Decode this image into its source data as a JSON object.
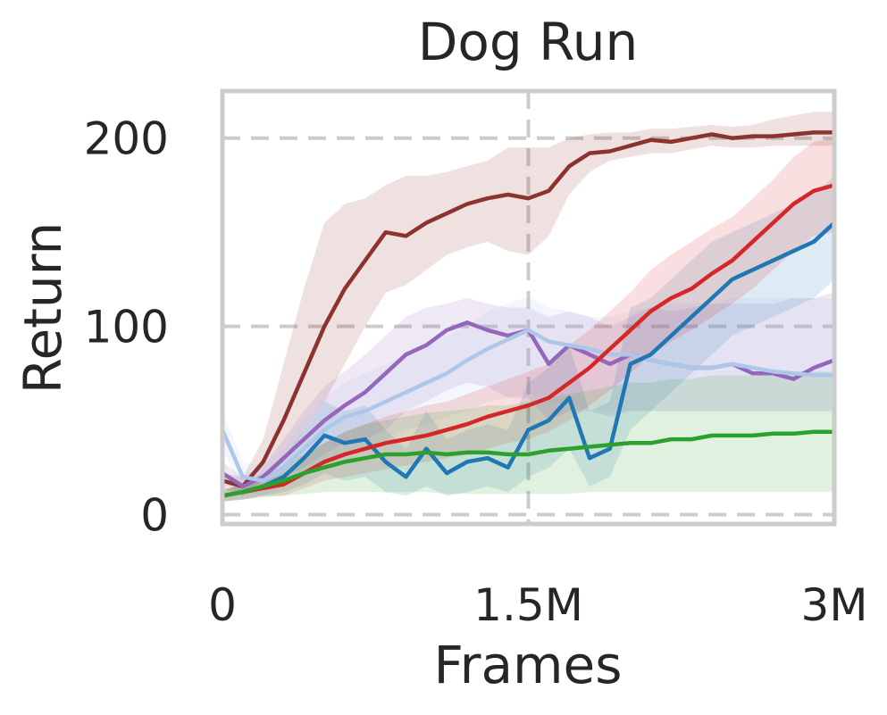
{
  "chart_data": {
    "type": "line",
    "title": "Dog Run",
    "xlabel": "Frames",
    "ylabel": "Return",
    "xlim": [
      0,
      3000000
    ],
    "ylim": [
      -5,
      225
    ],
    "xticks": [
      0,
      1500000,
      3000000
    ],
    "xtick_labels": [
      "0",
      "1.5M",
      "3M"
    ],
    "yticks": [
      0,
      100,
      200
    ],
    "ytick_labels": [
      "0",
      "100",
      "200"
    ],
    "grid": true,
    "legend": "none",
    "series": [
      {
        "color": "#8c3331",
        "x": [
          0,
          100000,
          200000,
          300000,
          400000,
          500000,
          600000,
          700000,
          800000,
          900000,
          1000000,
          1100000,
          1200000,
          1300000,
          1400000,
          1500000,
          1600000,
          1700000,
          1800000,
          1900000,
          2000000,
          2100000,
          2200000,
          2300000,
          2400000,
          2500000,
          2600000,
          2700000,
          2800000,
          2900000,
          3000000
        ],
        "y": [
          18,
          15,
          28,
          50,
          75,
          100,
          120,
          135,
          150,
          148,
          155,
          160,
          165,
          168,
          170,
          168,
          172,
          185,
          192,
          193,
          196,
          199,
          198,
          200,
          202,
          200,
          201,
          201,
          202,
          203,
          203
        ],
        "lower": [
          14,
          10,
          18,
          28,
          45,
          60,
          80,
          100,
          118,
          122,
          130,
          138,
          142,
          145,
          140,
          138,
          148,
          170,
          182,
          188,
          190,
          192,
          192,
          194,
          196,
          195,
          195,
          196,
          196,
          196,
          196
        ],
        "upper": [
          22,
          20,
          40,
          80,
          120,
          155,
          165,
          168,
          175,
          180,
          180,
          182,
          185,
          188,
          195,
          195,
          195,
          200,
          202,
          203,
          203,
          205,
          205,
          206,
          207,
          206,
          207,
          210,
          212,
          214,
          214
        ]
      },
      {
        "color": "#9467bd",
        "x": [
          0,
          100000,
          200000,
          300000,
          400000,
          500000,
          600000,
          700000,
          800000,
          900000,
          1000000,
          1100000,
          1200000,
          1300000,
          1400000,
          1500000,
          1600000,
          1700000,
          1800000,
          1900000,
          2000000,
          2100000,
          2200000,
          2300000,
          2400000,
          2500000,
          2600000,
          2700000,
          2800000,
          2900000,
          3000000
        ],
        "y": [
          22,
          15,
          20,
          30,
          40,
          50,
          58,
          65,
          75,
          85,
          90,
          98,
          102,
          98,
          95,
          98,
          80,
          90,
          85,
          80,
          85,
          82,
          80,
          78,
          78,
          80,
          75,
          75,
          72,
          78,
          82
        ],
        "lower": [
          18,
          10,
          14,
          20,
          25,
          32,
          38,
          40,
          45,
          55,
          60,
          66,
          70,
          68,
          62,
          62,
          50,
          55,
          55,
          52,
          55,
          55,
          55,
          55,
          55,
          55,
          55,
          55,
          55,
          55,
          55
        ],
        "upper": [
          28,
          20,
          26,
          40,
          55,
          68,
          76,
          85,
          95,
          105,
          110,
          112,
          115,
          112,
          110,
          110,
          105,
          108,
          105,
          100,
          105,
          110,
          108,
          110,
          112,
          112,
          112,
          112,
          115,
          115,
          118
        ]
      },
      {
        "color": "#aec7e8",
        "x": [
          0,
          100000,
          200000,
          300000,
          400000,
          500000,
          600000,
          700000,
          800000,
          900000,
          1000000,
          1100000,
          1200000,
          1300000,
          1400000,
          1500000,
          1600000,
          1700000,
          1800000,
          1900000,
          2000000,
          2100000,
          2200000,
          2300000,
          2400000,
          2500000,
          2600000,
          2700000,
          2800000,
          2900000,
          3000000
        ],
        "y": [
          45,
          20,
          18,
          25,
          35,
          45,
          52,
          55,
          60,
          65,
          70,
          75,
          82,
          88,
          93,
          98,
          92,
          90,
          88,
          85,
          85,
          82,
          80,
          78,
          78,
          80,
          78,
          76,
          75,
          74,
          74
        ],
        "lower": [
          35,
          12,
          10,
          15,
          20,
          28,
          32,
          35,
          40,
          45,
          48,
          52,
          55,
          60,
          62,
          65,
          60,
          58,
          56,
          55,
          55,
          55,
          55,
          55,
          55,
          55,
          55,
          55,
          55,
          55,
          55
        ],
        "upper": [
          55,
          28,
          26,
          35,
          50,
          62,
          70,
          75,
          80,
          85,
          90,
          95,
          100,
          108,
          112,
          116,
          110,
          108,
          105,
          105,
          108,
          110,
          112,
          112,
          112,
          115,
          115,
          115,
          115,
          115,
          115
        ]
      },
      {
        "color": "#1f77b4",
        "x": [
          0,
          100000,
          200000,
          300000,
          400000,
          500000,
          600000,
          700000,
          800000,
          900000,
          1000000,
          1100000,
          1200000,
          1300000,
          1400000,
          1500000,
          1600000,
          1700000,
          1800000,
          1900000,
          2000000,
          2100000,
          2200000,
          2300000,
          2400000,
          2500000,
          2600000,
          2700000,
          2800000,
          2900000,
          3000000
        ],
        "y": [
          10,
          12,
          15,
          20,
          30,
          42,
          38,
          40,
          28,
          20,
          35,
          22,
          28,
          30,
          25,
          45,
          50,
          62,
          30,
          35,
          80,
          85,
          95,
          105,
          115,
          125,
          130,
          135,
          140,
          145,
          155
        ],
        "lower": [
          7,
          8,
          10,
          12,
          16,
          22,
          18,
          20,
          12,
          10,
          15,
          10,
          12,
          15,
          12,
          20,
          25,
          35,
          15,
          20,
          45,
          55,
          65,
          75,
          85,
          95,
          100,
          105,
          110,
          115,
          125
        ],
        "upper": [
          13,
          16,
          22,
          30,
          45,
          60,
          55,
          58,
          45,
          35,
          55,
          40,
          45,
          48,
          45,
          70,
          78,
          90,
          55,
          60,
          110,
          115,
          125,
          135,
          145,
          150,
          155,
          160,
          165,
          170,
          180
        ]
      },
      {
        "color": "#d62728",
        "x": [
          0,
          100000,
          200000,
          300000,
          400000,
          500000,
          600000,
          700000,
          800000,
          900000,
          1000000,
          1100000,
          1200000,
          1300000,
          1400000,
          1500000,
          1600000,
          1700000,
          1800000,
          1900000,
          2000000,
          2100000,
          2200000,
          2300000,
          2400000,
          2500000,
          2600000,
          2700000,
          2800000,
          2900000,
          3000000
        ],
        "y": [
          10,
          12,
          14,
          16,
          22,
          28,
          32,
          35,
          38,
          40,
          42,
          45,
          48,
          52,
          55,
          58,
          62,
          70,
          78,
          88,
          98,
          108,
          115,
          120,
          128,
          135,
          145,
          155,
          165,
          172,
          175
        ],
        "lower": [
          7,
          8,
          10,
          10,
          14,
          18,
          20,
          22,
          24,
          26,
          28,
          30,
          32,
          35,
          38,
          40,
          44,
          50,
          58,
          66,
          75,
          85,
          92,
          98,
          105,
          112,
          120,
          130,
          140,
          148,
          150
        ],
        "upper": [
          13,
          16,
          18,
          22,
          30,
          38,
          44,
          48,
          52,
          55,
          58,
          60,
          64,
          68,
          72,
          76,
          80,
          90,
          98,
          108,
          118,
          130,
          138,
          145,
          152,
          158,
          168,
          178,
          190,
          198,
          200
        ]
      },
      {
        "color": "#2ca02c",
        "x": [
          0,
          100000,
          200000,
          300000,
          400000,
          500000,
          600000,
          700000,
          800000,
          900000,
          1000000,
          1100000,
          1200000,
          1300000,
          1400000,
          1500000,
          1600000,
          1700000,
          1800000,
          1900000,
          2000000,
          2100000,
          2200000,
          2300000,
          2400000,
          2500000,
          2600000,
          2700000,
          2800000,
          2900000,
          3000000
        ],
        "y": [
          10,
          12,
          15,
          18,
          22,
          25,
          28,
          30,
          32,
          32,
          33,
          32,
          33,
          33,
          32,
          32,
          34,
          35,
          36,
          37,
          38,
          38,
          40,
          40,
          42,
          42,
          42,
          43,
          43,
          44,
          44
        ],
        "lower": [
          7,
          8,
          9,
          10,
          11,
          12,
          12,
          12,
          12,
          12,
          12,
          11,
          11,
          11,
          11,
          11,
          11,
          11,
          12,
          12,
          12,
          12,
          12,
          12,
          12,
          12,
          12,
          12,
          12,
          12,
          12
        ],
        "upper": [
          13,
          16,
          20,
          26,
          32,
          38,
          44,
          48,
          50,
          52,
          54,
          55,
          56,
          58,
          58,
          60,
          62,
          64,
          66,
          68,
          70,
          70,
          72,
          72,
          74,
          74,
          74,
          76,
          76,
          76,
          76
        ]
      }
    ]
  }
}
